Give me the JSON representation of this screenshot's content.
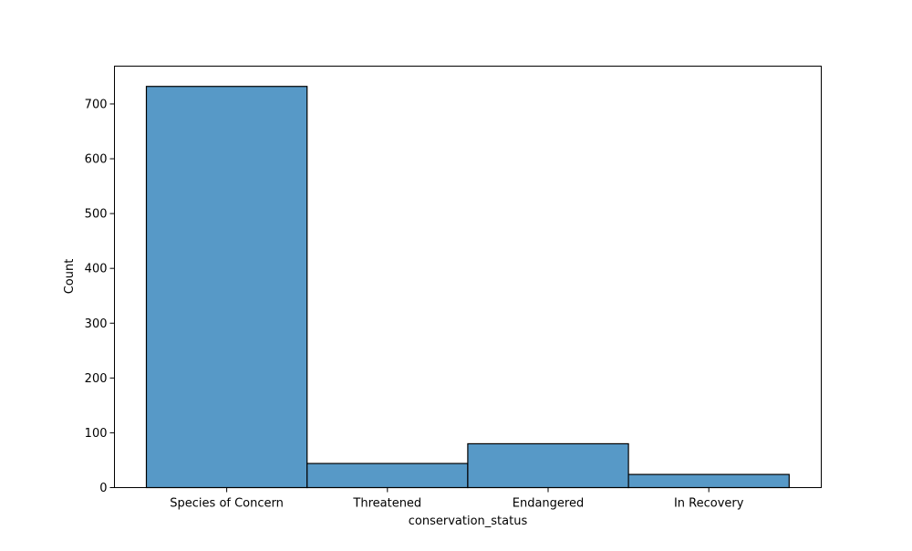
{
  "chart_data": {
    "type": "bar",
    "title": "",
    "xlabel": "conservation_status",
    "ylabel": "Count",
    "categories": [
      "Species of Concern",
      "Threatened",
      "Endangered",
      "In Recovery"
    ],
    "values": [
      732,
      44,
      80,
      24
    ],
    "ylim": [
      0,
      769
    ],
    "yticks": [
      0,
      100,
      200,
      300,
      400,
      500,
      600,
      700
    ],
    "grid": false,
    "legend": "none",
    "bar_color": "#5799c7",
    "edge_color": "#000000"
  }
}
